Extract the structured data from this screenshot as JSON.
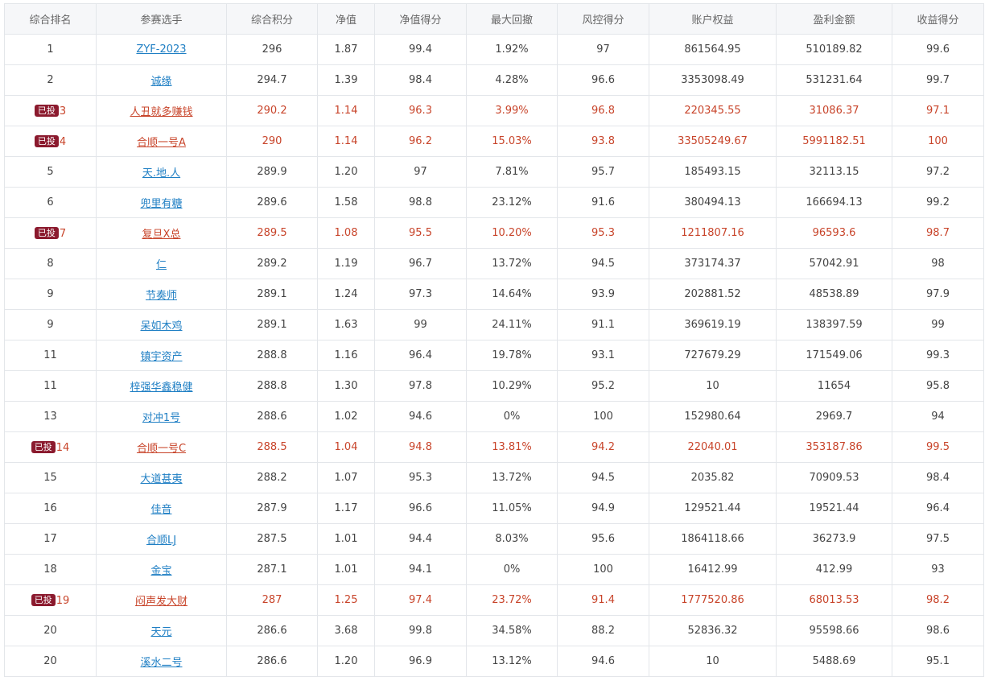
{
  "table": {
    "headers": [
      "综合排名",
      "参赛选手",
      "综合积分",
      "净值",
      "净值得分",
      "最大回撤",
      "风控得分",
      "账户权益",
      "盈利金额",
      "收益得分"
    ],
    "invested_badge": "已投",
    "rows": [
      {
        "rank": "1",
        "invested": false,
        "player": "ZYF-2023",
        "score": "296",
        "nav": "1.87",
        "nav_score": "99.4",
        "max_drawdown": "1.92%",
        "risk_score": "97",
        "equity": "861564.95",
        "profit": "510189.82",
        "return_score": "99.6"
      },
      {
        "rank": "2",
        "invested": false,
        "player": "诚缘",
        "score": "294.7",
        "nav": "1.39",
        "nav_score": "98.4",
        "max_drawdown": "4.28%",
        "risk_score": "96.6",
        "equity": "3353098.49",
        "profit": "531231.64",
        "return_score": "99.7"
      },
      {
        "rank": "3",
        "invested": true,
        "player": "人丑就多赚钱",
        "score": "290.2",
        "nav": "1.14",
        "nav_score": "96.3",
        "max_drawdown": "3.99%",
        "risk_score": "96.8",
        "equity": "220345.55",
        "profit": "31086.37",
        "return_score": "97.1"
      },
      {
        "rank": "4",
        "invested": true,
        "player": "合顺一号A",
        "score": "290",
        "nav": "1.14",
        "nav_score": "96.2",
        "max_drawdown": "15.03%",
        "risk_score": "93.8",
        "equity": "33505249.67",
        "profit": "5991182.51",
        "return_score": "100"
      },
      {
        "rank": "5",
        "invested": false,
        "player": "天.地.人",
        "score": "289.9",
        "nav": "1.20",
        "nav_score": "97",
        "max_drawdown": "7.81%",
        "risk_score": "95.7",
        "equity": "185493.15",
        "profit": "32113.15",
        "return_score": "97.2"
      },
      {
        "rank": "6",
        "invested": false,
        "player": "兜里有糖",
        "score": "289.6",
        "nav": "1.58",
        "nav_score": "98.8",
        "max_drawdown": "23.12%",
        "risk_score": "91.6",
        "equity": "380494.13",
        "profit": "166694.13",
        "return_score": "99.2"
      },
      {
        "rank": "7",
        "invested": true,
        "player": "复旦X总",
        "score": "289.5",
        "nav": "1.08",
        "nav_score": "95.5",
        "max_drawdown": "10.20%",
        "risk_score": "95.3",
        "equity": "1211807.16",
        "profit": "96593.6",
        "return_score": "98.7"
      },
      {
        "rank": "8",
        "invested": false,
        "player": "仁",
        "score": "289.2",
        "nav": "1.19",
        "nav_score": "96.7",
        "max_drawdown": "13.72%",
        "risk_score": "94.5",
        "equity": "373174.37",
        "profit": "57042.91",
        "return_score": "98"
      },
      {
        "rank": "9",
        "invested": false,
        "player": "节奏师",
        "score": "289.1",
        "nav": "1.24",
        "nav_score": "97.3",
        "max_drawdown": "14.64%",
        "risk_score": "93.9",
        "equity": "202881.52",
        "profit": "48538.89",
        "return_score": "97.9"
      },
      {
        "rank": "9",
        "invested": false,
        "player": "呆如木鸡",
        "score": "289.1",
        "nav": "1.63",
        "nav_score": "99",
        "max_drawdown": "24.11%",
        "risk_score": "91.1",
        "equity": "369619.19",
        "profit": "138397.59",
        "return_score": "99"
      },
      {
        "rank": "11",
        "invested": false,
        "player": "镇宇资产",
        "score": "288.8",
        "nav": "1.16",
        "nav_score": "96.4",
        "max_drawdown": "19.78%",
        "risk_score": "93.1",
        "equity": "727679.29",
        "profit": "171549.06",
        "return_score": "99.3"
      },
      {
        "rank": "11",
        "invested": false,
        "player": "梓强华鑫稳健",
        "score": "288.8",
        "nav": "1.30",
        "nav_score": "97.8",
        "max_drawdown": "10.29%",
        "risk_score": "95.2",
        "equity": "10",
        "profit": "11654",
        "return_score": "95.8"
      },
      {
        "rank": "13",
        "invested": false,
        "player": "对冲1号",
        "score": "288.6",
        "nav": "1.02",
        "nav_score": "94.6",
        "max_drawdown": "0%",
        "risk_score": "100",
        "equity": "152980.64",
        "profit": "2969.7",
        "return_score": "94"
      },
      {
        "rank": "14",
        "invested": true,
        "player": "合顺一号C",
        "score": "288.5",
        "nav": "1.04",
        "nav_score": "94.8",
        "max_drawdown": "13.81%",
        "risk_score": "94.2",
        "equity": "22040.01",
        "profit": "353187.86",
        "return_score": "99.5"
      },
      {
        "rank": "15",
        "invested": false,
        "player": "大道甚夷",
        "score": "288.2",
        "nav": "1.07",
        "nav_score": "95.3",
        "max_drawdown": "13.72%",
        "risk_score": "94.5",
        "equity": "2035.82",
        "profit": "70909.53",
        "return_score": "98.4"
      },
      {
        "rank": "16",
        "invested": false,
        "player": "佳音",
        "score": "287.9",
        "nav": "1.17",
        "nav_score": "96.6",
        "max_drawdown": "11.05%",
        "risk_score": "94.9",
        "equity": "129521.44",
        "profit": "19521.44",
        "return_score": "96.4"
      },
      {
        "rank": "17",
        "invested": false,
        "player": "合顺LJ",
        "score": "287.5",
        "nav": "1.01",
        "nav_score": "94.4",
        "max_drawdown": "8.03%",
        "risk_score": "95.6",
        "equity": "1864118.66",
        "profit": "36273.9",
        "return_score": "97.5"
      },
      {
        "rank": "18",
        "invested": false,
        "player": "金宝",
        "score": "287.1",
        "nav": "1.01",
        "nav_score": "94.1",
        "max_drawdown": "0%",
        "risk_score": "100",
        "equity": "16412.99",
        "profit": "412.99",
        "return_score": "93"
      },
      {
        "rank": "19",
        "invested": true,
        "player": "闷声发大财",
        "score": "287",
        "nav": "1.25",
        "nav_score": "97.4",
        "max_drawdown": "23.72%",
        "risk_score": "91.4",
        "equity": "1777520.86",
        "profit": "68013.53",
        "return_score": "98.2"
      },
      {
        "rank": "20",
        "invested": false,
        "player": "天元",
        "score": "286.6",
        "nav": "3.68",
        "nav_score": "99.8",
        "max_drawdown": "34.58%",
        "risk_score": "88.2",
        "equity": "52836.32",
        "profit": "95598.66",
        "return_score": "98.6"
      },
      {
        "rank": "20",
        "invested": false,
        "player": "溪水二号",
        "score": "286.6",
        "nav": "1.20",
        "nav_score": "96.9",
        "max_drawdown": "13.12%",
        "risk_score": "94.6",
        "equity": "10",
        "profit": "5488.69",
        "return_score": "95.1"
      }
    ]
  },
  "colors": {
    "header_bg": "#f6f7f9",
    "border": "#e3e6ea",
    "link": "#1f7fc4",
    "invested_text": "#c8442a",
    "badge_bg": "#8b1a2e"
  }
}
